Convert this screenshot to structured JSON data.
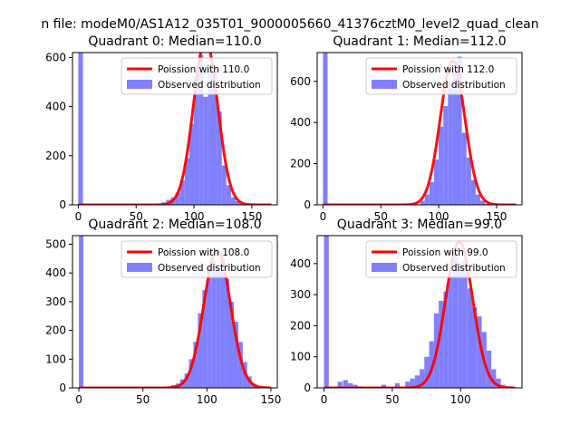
{
  "suptitle": "n file: modeM0/AS1A12_035T01_9000005660_41376cztM0_level2_quad_clean",
  "colors": {
    "fit": "#ff0000",
    "hist": "#8080ff",
    "axis": "#000000"
  },
  "chart_data": [
    {
      "type": "bar",
      "title": "Quadrant 0: Median=110.0",
      "legend": {
        "placement": "upper-right",
        "entries": [
          "Poission with 110.0",
          "Observed distribution"
        ]
      },
      "xlim": [
        -5,
        172
      ],
      "ylim": [
        0,
        620
      ],
      "xticks": [
        0,
        50,
        100,
        150
      ],
      "yticks": [
        0,
        200,
        400,
        600
      ],
      "fit": {
        "label": "Poission with 110.0",
        "lambda": 110.0,
        "peak": 670,
        "x_range": [
          0,
          167
        ]
      },
      "hist": {
        "label": "Observed distribution",
        "bin_width": 4,
        "bin_starts": [
          0,
          72,
          76,
          80,
          84,
          88,
          92,
          96,
          100,
          104,
          108,
          112,
          116,
          120,
          124,
          128,
          132,
          136,
          140
        ],
        "values": [
          1000,
          10,
          20,
          30,
          50,
          100,
          190,
          330,
          520,
          610,
          440,
          550,
          560,
          380,
          160,
          80,
          30,
          15,
          5
        ]
      }
    },
    {
      "type": "bar",
      "title": "Quadrant 1: Median=112.0",
      "legend": {
        "placement": "upper-right",
        "entries": [
          "Poission with 112.0",
          "Observed distribution"
        ]
      },
      "xlim": [
        -5,
        172
      ],
      "ylim": [
        0,
        740
      ],
      "xticks": [
        0,
        50,
        100,
        150
      ],
      "yticks": [
        0,
        200,
        400,
        600
      ],
      "fit": {
        "label": "Poission with 112.0",
        "lambda": 112.0,
        "peak": 700,
        "x_range": [
          0,
          167
        ]
      },
      "hist": {
        "label": "Observed distribution",
        "bin_width": 4,
        "bin_starts": [
          0,
          84,
          88,
          92,
          96,
          100,
          104,
          108,
          112,
          116,
          120,
          124,
          128,
          132,
          136,
          140
        ],
        "values": [
          1000,
          20,
          50,
          110,
          220,
          380,
          480,
          600,
          700,
          720,
          350,
          230,
          120,
          50,
          20,
          5
        ]
      }
    },
    {
      "type": "bar",
      "title": "Quadrant 2: Median=108.0",
      "legend": {
        "placement": "upper-right",
        "entries": [
          "Poission with 108.0",
          "Observed distribution"
        ]
      },
      "xlim": [
        -5,
        155
      ],
      "ylim": [
        0,
        530
      ],
      "xticks": [
        0,
        50,
        100,
        150
      ],
      "yticks": [
        0,
        100,
        200,
        300,
        400,
        500
      ],
      "fit": {
        "label": "Poission with 108.0",
        "lambda": 108.0,
        "peak": 480,
        "x_range": [
          0,
          150
        ]
      },
      "hist": {
        "label": "Observed distribution",
        "bin_width": 3.5,
        "bin_starts": [
          0,
          72,
          75.5,
          79,
          82.5,
          86,
          89.5,
          93,
          96.5,
          100,
          103.5,
          107,
          110.5,
          114,
          117.5,
          121,
          124.5,
          128,
          131.5,
          135,
          138.5
        ],
        "values": [
          1000,
          10,
          15,
          30,
          50,
          100,
          160,
          260,
          340,
          420,
          440,
          420,
          450,
          380,
          300,
          230,
          160,
          90,
          40,
          15,
          5
        ]
      }
    },
    {
      "type": "bar",
      "title": "Quadrant 3: Median=99.0",
      "legend": {
        "placement": "upper-right",
        "entries": [
          "Poission with 99.0",
          "Observed distribution"
        ]
      },
      "xlim": [
        -5,
        145
      ],
      "ylim": [
        0,
        490
      ],
      "xticks": [
        0,
        50,
        100
      ],
      "yticks": [
        0,
        100,
        200,
        300,
        400
      ],
      "fit": {
        "label": "Poission with 99.0",
        "lambda": 99.0,
        "peak": 470,
        "x_range": [
          0,
          140
        ]
      },
      "hist": {
        "label": "Observed distribution",
        "bin_width": 3.5,
        "bin_starts": [
          0,
          10,
          14,
          17.5,
          21,
          24.5,
          42,
          52,
          59.5,
          63,
          66.5,
          70,
          73.5,
          77,
          80.5,
          84,
          87.5,
          91,
          94.5,
          98,
          101.5,
          105,
          108.5,
          112,
          115.5,
          119,
          122.5,
          126,
          129.5
        ],
        "values": [
          1000,
          20,
          25,
          15,
          10,
          5,
          10,
          15,
          20,
          30,
          40,
          60,
          100,
          150,
          240,
          280,
          310,
          360,
          450,
          400,
          410,
          320,
          260,
          230,
          180,
          120,
          60,
          30,
          10
        ]
      }
    }
  ]
}
